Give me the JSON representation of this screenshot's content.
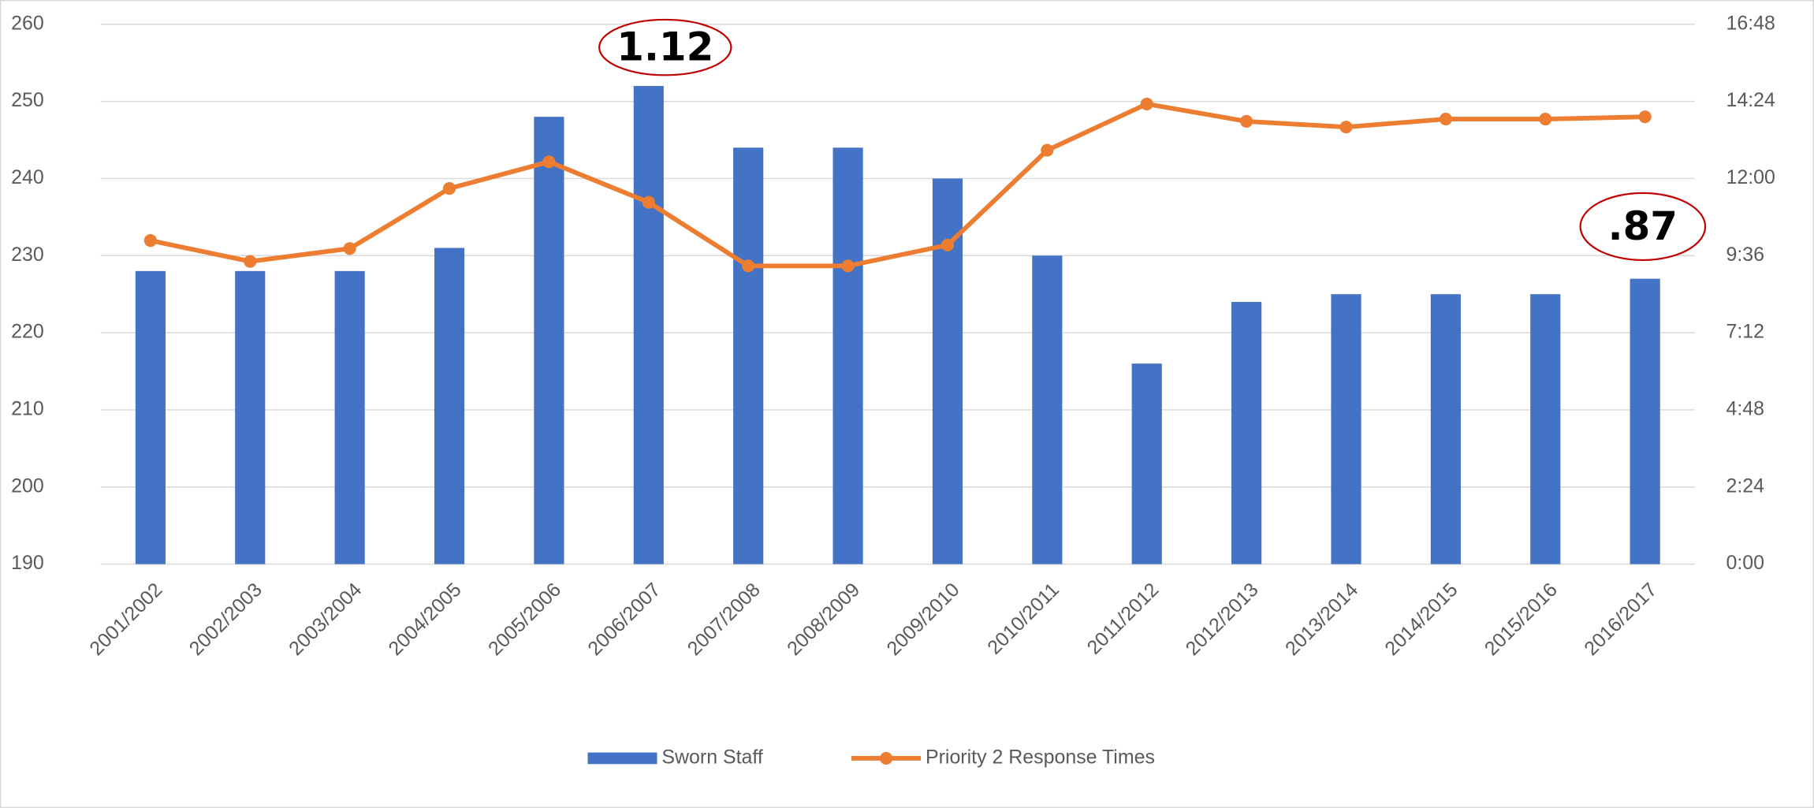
{
  "chart_data": {
    "type": "bar",
    "categories": [
      "2001/2002",
      "2002/2003",
      "2003/2004",
      "2004/2005",
      "2005/2006",
      "2006/2007",
      "2007/2008",
      "2008/2009",
      "2009/2010",
      "2010/2011",
      "2011/2012",
      "2012/2013",
      "2013/2014",
      "2014/2015",
      "2015/2016",
      "2016/2017"
    ],
    "series": [
      {
        "name": "Sworn Staff",
        "type": "bar",
        "color": "#4472c4",
        "values": [
          228,
          228,
          228,
          231,
          248,
          252,
          244,
          244,
          240,
          230,
          216,
          224,
          225,
          225,
          225,
          227
        ]
      },
      {
        "name": "Priority 2 Response Times",
        "type": "line",
        "axis": "y2",
        "color": "#ed7d31",
        "values": [
          10.07,
          9.42,
          9.82,
          11.69,
          12.52,
          11.26,
          9.28,
          9.28,
          9.93,
          12.88,
          14.32,
          13.78,
          13.6,
          13.85,
          13.85,
          13.92
        ]
      }
    ],
    "ylim": [
      190,
      260
    ],
    "yticks": [
      190,
      200,
      210,
      220,
      230,
      240,
      250,
      260
    ],
    "y2lim": [
      0,
      16.8
    ],
    "y2ticks": [
      {
        "value": 0,
        "label": "0:00"
      },
      {
        "value": 2.4,
        "label": "2:24"
      },
      {
        "value": 4.8,
        "label": "4:48"
      },
      {
        "value": 7.2,
        "label": "7:12"
      },
      {
        "value": 9.6,
        "label": "9:36"
      },
      {
        "value": 12,
        "label": "12:00"
      },
      {
        "value": 14.4,
        "label": "14:24"
      },
      {
        "value": 16.8,
        "label": "16:48"
      }
    ],
    "annotations": [
      "1.12",
      ".87"
    ],
    "grid": true,
    "legend": "bottom"
  }
}
